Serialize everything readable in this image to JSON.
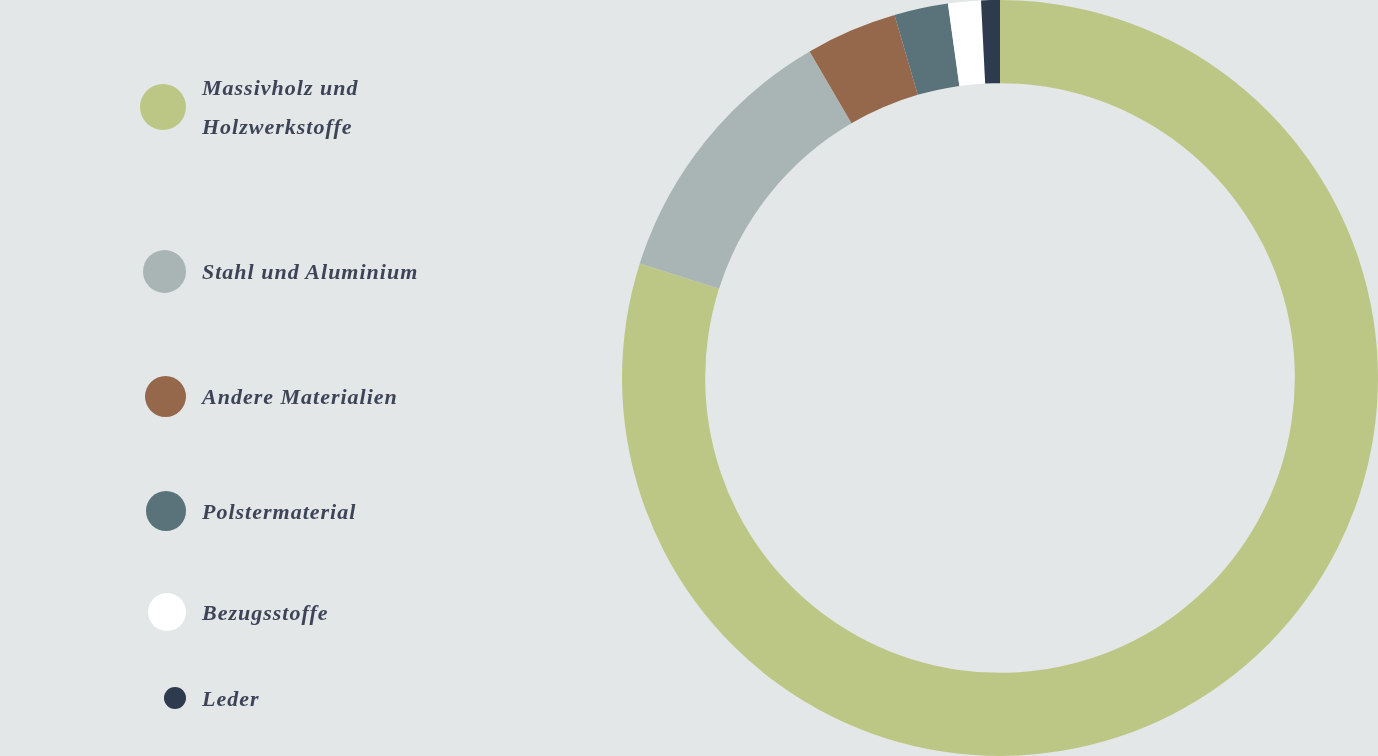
{
  "chart_data": {
    "type": "donut",
    "categories": [
      "Massivholz und Holzwerkstoffe",
      "Stahl und Aluminium",
      "Andere Materialien",
      "Polstermaterial",
      "Bezugsstoffe",
      "Leder"
    ],
    "values": [
      79.9,
      11.7,
      3.9,
      2.3,
      1.4,
      0.8
    ],
    "colors": [
      "#bdc785",
      "#a9b5b4",
      "#96684b",
      "#5a737a",
      "#ffffff",
      "#2e3a4e"
    ],
    "legend": "left"
  }
}
